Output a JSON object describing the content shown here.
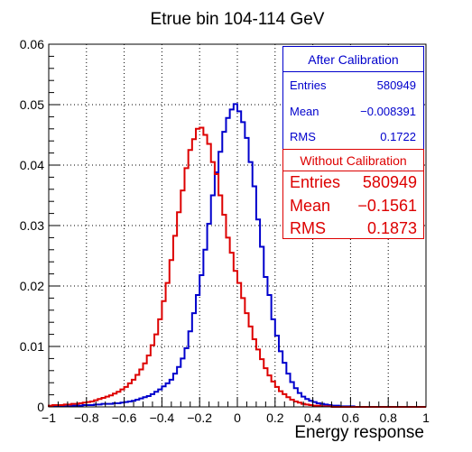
{
  "chart_data": {
    "type": "line",
    "title": "Etrue bin 104-114 GeV",
    "xlabel": "Energy response",
    "ylabel": "",
    "xlim": [
      -1,
      1
    ],
    "ylim": [
      0,
      0.06
    ],
    "grid": true,
    "x_ticks": [
      "−1",
      "−0.8",
      "−0.6",
      "−0.4",
      "−0.2",
      "0",
      "0.2",
      "0.4",
      "0.6",
      "0.8",
      "1"
    ],
    "y_ticks": [
      "0",
      "0.01",
      "0.02",
      "0.03",
      "0.04",
      "0.05",
      "0.06"
    ],
    "bin_edges": [
      -1.0,
      -0.98,
      -0.96,
      -0.94,
      -0.92,
      -0.9,
      -0.88,
      -0.86,
      -0.84,
      -0.82,
      -0.8,
      -0.78,
      -0.76,
      -0.74,
      -0.72,
      -0.7,
      -0.68,
      -0.66,
      -0.64,
      -0.62,
      -0.6,
      -0.58,
      -0.56,
      -0.54,
      -0.52,
      -0.5,
      -0.48,
      -0.46,
      -0.44,
      -0.42,
      -0.4,
      -0.38,
      -0.36,
      -0.34,
      -0.32,
      -0.3,
      -0.28,
      -0.26,
      -0.24,
      -0.22,
      -0.2,
      -0.18,
      -0.16,
      -0.14,
      -0.12,
      -0.1,
      -0.08,
      -0.06,
      -0.04,
      -0.02,
      0.0,
      0.02,
      0.04,
      0.06,
      0.08,
      0.1,
      0.12,
      0.14,
      0.16,
      0.18,
      0.2,
      0.22,
      0.24,
      0.26,
      0.28,
      0.3,
      0.32,
      0.34,
      0.36,
      0.38,
      0.4,
      0.42,
      0.44,
      0.46,
      0.48,
      0.5,
      0.52,
      0.54,
      0.56,
      0.58,
      0.6,
      0.62,
      0.64,
      0.66,
      0.68,
      0.7,
      0.72,
      0.74,
      0.76,
      0.78,
      0.8,
      0.82,
      0.84,
      0.86,
      0.88,
      0.9,
      0.92,
      0.94,
      0.96,
      0.98,
      1.0
    ],
    "series": [
      {
        "name": "After Calibration",
        "color": "#0000cc",
        "values": [
          0.0001,
          0.0001,
          0.0001,
          0.0001,
          0.0001,
          0.0001,
          0.0002,
          0.0002,
          0.0002,
          0.0003,
          0.0003,
          0.0003,
          0.0004,
          0.0004,
          0.0005,
          0.0005,
          0.0005,
          0.0006,
          0.0006,
          0.0007,
          0.0008,
          0.0009,
          0.001,
          0.0012,
          0.0014,
          0.0016,
          0.0018,
          0.0021,
          0.0025,
          0.0029,
          0.0034,
          0.0039,
          0.0045,
          0.0055,
          0.0066,
          0.008,
          0.0097,
          0.0125,
          0.0155,
          0.0185,
          0.0218,
          0.026,
          0.0303,
          0.035,
          0.0388,
          0.0422,
          0.0455,
          0.0478,
          0.0492,
          0.0501,
          0.0489,
          0.0471,
          0.0445,
          0.0405,
          0.0365,
          0.031,
          0.0265,
          0.0215,
          0.0185,
          0.0145,
          0.0118,
          0.0092,
          0.0073,
          0.0055,
          0.0041,
          0.0031,
          0.0023,
          0.0017,
          0.0013,
          0.001,
          0.0008,
          0.0006,
          0.0005,
          0.0004,
          0.0003,
          0.0002,
          0.0002,
          0.0001,
          0.0001,
          0.0001,
          0.0001,
          0,
          0,
          0,
          0,
          0,
          0,
          0,
          0,
          0,
          0,
          0,
          0,
          0,
          0,
          0,
          0,
          0,
          0,
          0
        ]
      },
      {
        "name": "Without Calibration",
        "color": "#dd0000",
        "values": [
          0.0002,
          0.0003,
          0.0003,
          0.0003,
          0.0004,
          0.0004,
          0.0005,
          0.0005,
          0.0006,
          0.0007,
          0.0008,
          0.0009,
          0.0011,
          0.0013,
          0.0015,
          0.0017,
          0.0019,
          0.0022,
          0.0025,
          0.0029,
          0.0033,
          0.0039,
          0.0045,
          0.0053,
          0.0062,
          0.0072,
          0.0085,
          0.0102,
          0.012,
          0.0145,
          0.0175,
          0.0205,
          0.0243,
          0.0283,
          0.0322,
          0.0358,
          0.0395,
          0.0425,
          0.0443,
          0.046,
          0.0462,
          0.045,
          0.0435,
          0.0405,
          0.0385,
          0.035,
          0.0318,
          0.028,
          0.0255,
          0.0225,
          0.0205,
          0.018,
          0.0155,
          0.0133,
          0.0112,
          0.0095,
          0.0079,
          0.0064,
          0.0052,
          0.0042,
          0.0033,
          0.0026,
          0.0021,
          0.0016,
          0.0012,
          0.0009,
          0.0007,
          0.0005,
          0.0004,
          0.0003,
          0.0002,
          0.0002,
          0.0001,
          0.0001,
          0.0001,
          0,
          0,
          0,
          0,
          0,
          0,
          0,
          0,
          0,
          0,
          0,
          0,
          0,
          0,
          0,
          0,
          0,
          0,
          0,
          0,
          0,
          0,
          0,
          0,
          0
        ]
      }
    ]
  },
  "stats": {
    "after": {
      "title": "After Calibration",
      "color": "#0000cc",
      "rows": [
        {
          "label": "Entries",
          "value": "580949"
        },
        {
          "label": "Mean",
          "value": "−0.008391"
        },
        {
          "label": "RMS",
          "value": "0.1722"
        }
      ]
    },
    "without": {
      "title": "Without Calibration",
      "color": "#dd0000",
      "rows": [
        {
          "label": "Entries",
          "value": "580949"
        },
        {
          "label": "Mean",
          "value": "−0.1561"
        },
        {
          "label": "RMS",
          "value": "0.1873"
        }
      ]
    }
  }
}
